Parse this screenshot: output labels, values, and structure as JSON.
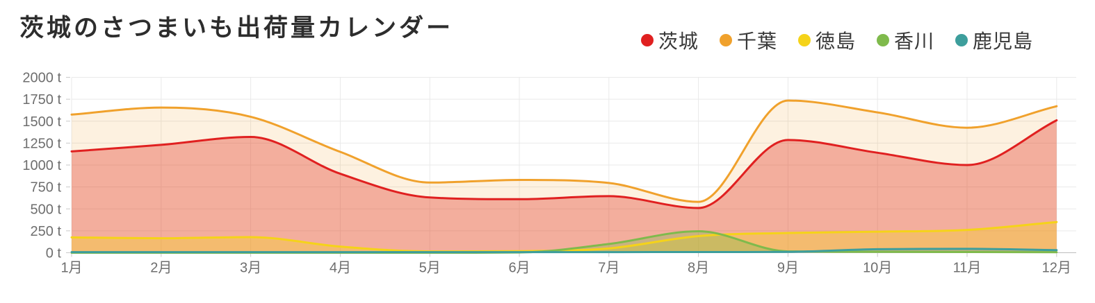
{
  "header": {
    "title": "茨城のさつまいも出荷量カレンダー"
  },
  "legend": {
    "position": "top-right",
    "items": [
      {
        "label": "茨城",
        "color": "#e02020"
      },
      {
        "label": "千葉",
        "color": "#f0a12c"
      },
      {
        "label": "徳島",
        "color": "#f5d319"
      },
      {
        "label": "香川",
        "color": "#7fba4c"
      },
      {
        "label": "鹿児島",
        "color": "#3d9e9c"
      }
    ]
  },
  "chart_data": {
    "type": "area",
    "title": "茨城のさつまいも出荷量カレンダー",
    "xlabel": "",
    "ylabel": "",
    "unit": "t",
    "grid": true,
    "legend_position": "top-right",
    "x_labels": [
      "1月",
      "2月",
      "3月",
      "4月",
      "5月",
      "6月",
      "7月",
      "8月",
      "9月",
      "10月",
      "11月",
      "12月"
    ],
    "y_axis": {
      "min": 0,
      "max": 2000,
      "step": 250,
      "ticks": [
        {
          "value": 0,
          "label": "0 t"
        },
        {
          "value": 250,
          "label": "250 t"
        },
        {
          "value": 500,
          "label": "500 t"
        },
        {
          "value": 750,
          "label": "750 t"
        },
        {
          "value": 1000,
          "label": "1000 t"
        },
        {
          "value": 1250,
          "label": "1250 t"
        },
        {
          "value": 1500,
          "label": "1500 t"
        },
        {
          "value": 1750,
          "label": "1750 t"
        },
        {
          "value": 2000,
          "label": "2000 t"
        }
      ]
    },
    "series": [
      {
        "name": "茨城",
        "color": "#e02020",
        "fill_opacity": 0.35,
        "values": [
          1155,
          1230,
          1320,
          900,
          630,
          610,
          645,
          510,
          1285,
          1140,
          1000,
          1510
        ]
      },
      {
        "name": "千葉",
        "color": "#f0a12c",
        "fill_opacity": 0.15,
        "values": [
          1575,
          1655,
          1550,
          1150,
          800,
          830,
          795,
          580,
          1735,
          1600,
          1425,
          1670
        ]
      },
      {
        "name": "徳島",
        "color": "#f5d319",
        "fill_opacity": 0.35,
        "values": [
          175,
          165,
          178,
          70,
          15,
          18,
          50,
          190,
          225,
          240,
          260,
          350
        ]
      },
      {
        "name": "香川",
        "color": "#7fba4c",
        "fill_opacity": 0.35,
        "values": [
          0,
          0,
          0,
          0,
          0,
          3,
          100,
          245,
          15,
          10,
          8,
          6
        ]
      },
      {
        "name": "鹿児島",
        "color": "#3d9e9c",
        "fill_opacity": 0.3,
        "values": [
          7,
          7,
          7,
          7,
          7,
          7,
          7,
          8,
          10,
          40,
          44,
          30
        ]
      }
    ]
  }
}
